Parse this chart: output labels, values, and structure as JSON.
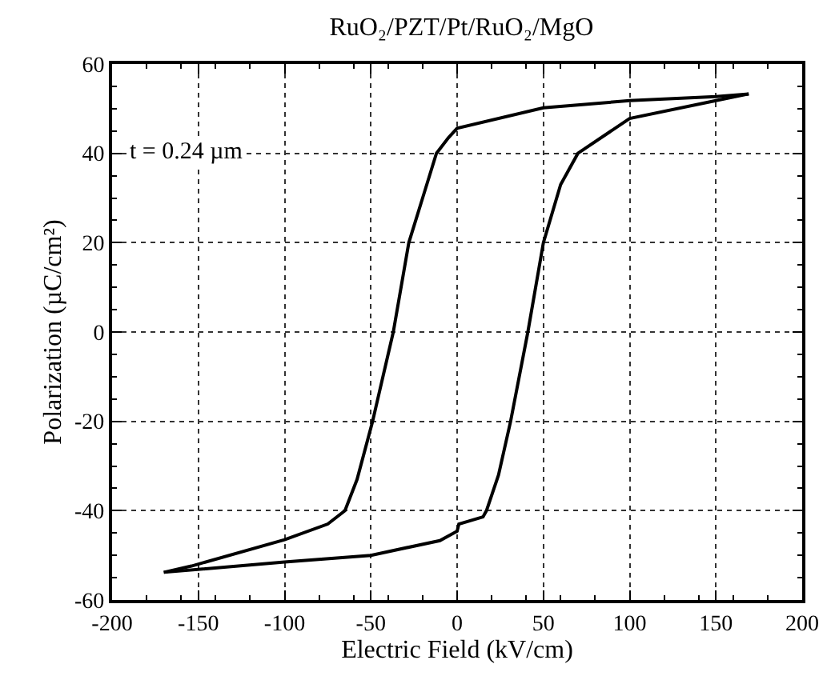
{
  "chart_data": {
    "type": "line",
    "title": "RuO₂/PZT/Pt/RuO₂/MgO",
    "xlabel": "Electric Field (kV/cm)",
    "ylabel": "Polarization (µC/cm²)",
    "annotations": [
      "t = 0.24 µm"
    ],
    "series": [
      {
        "color": "#000000",
        "x": [
          169,
          150,
          100,
          50,
          0,
          -5,
          -12,
          -20,
          -28,
          -37,
          -49,
          -58,
          -65,
          -75,
          -100,
          -154,
          -170
        ],
        "values": [
          53.3,
          52.7,
          51.8,
          50.2,
          45.6,
          43.5,
          40,
          30,
          20,
          0,
          -20,
          -33,
          -40,
          -43,
          -46.5,
          -52.4,
          -53.8
        ]
      },
      {
        "color": "#000000",
        "x": [
          -170,
          -100,
          -50,
          -10,
          0,
          1,
          15,
          17,
          24,
          31,
          41,
          50,
          60,
          70,
          100,
          150,
          169
        ],
        "values": [
          -53.8,
          -51.5,
          -50,
          -46.7,
          -44.6,
          -43,
          -41.4,
          -40,
          -32,
          -20,
          0,
          20,
          33,
          40,
          47.8,
          51.8,
          53.3
        ]
      }
    ],
    "xlim": [
      -200,
      200
    ],
    "xticks": [
      -200,
      -150,
      -100,
      -50,
      0,
      50,
      100,
      150,
      200
    ],
    "ylim": [
      -60,
      60
    ],
    "yticks": [
      -60,
      -40,
      -20,
      0,
      20,
      40,
      60
    ],
    "grid": true,
    "marker": "none",
    "line_style": "solid"
  }
}
